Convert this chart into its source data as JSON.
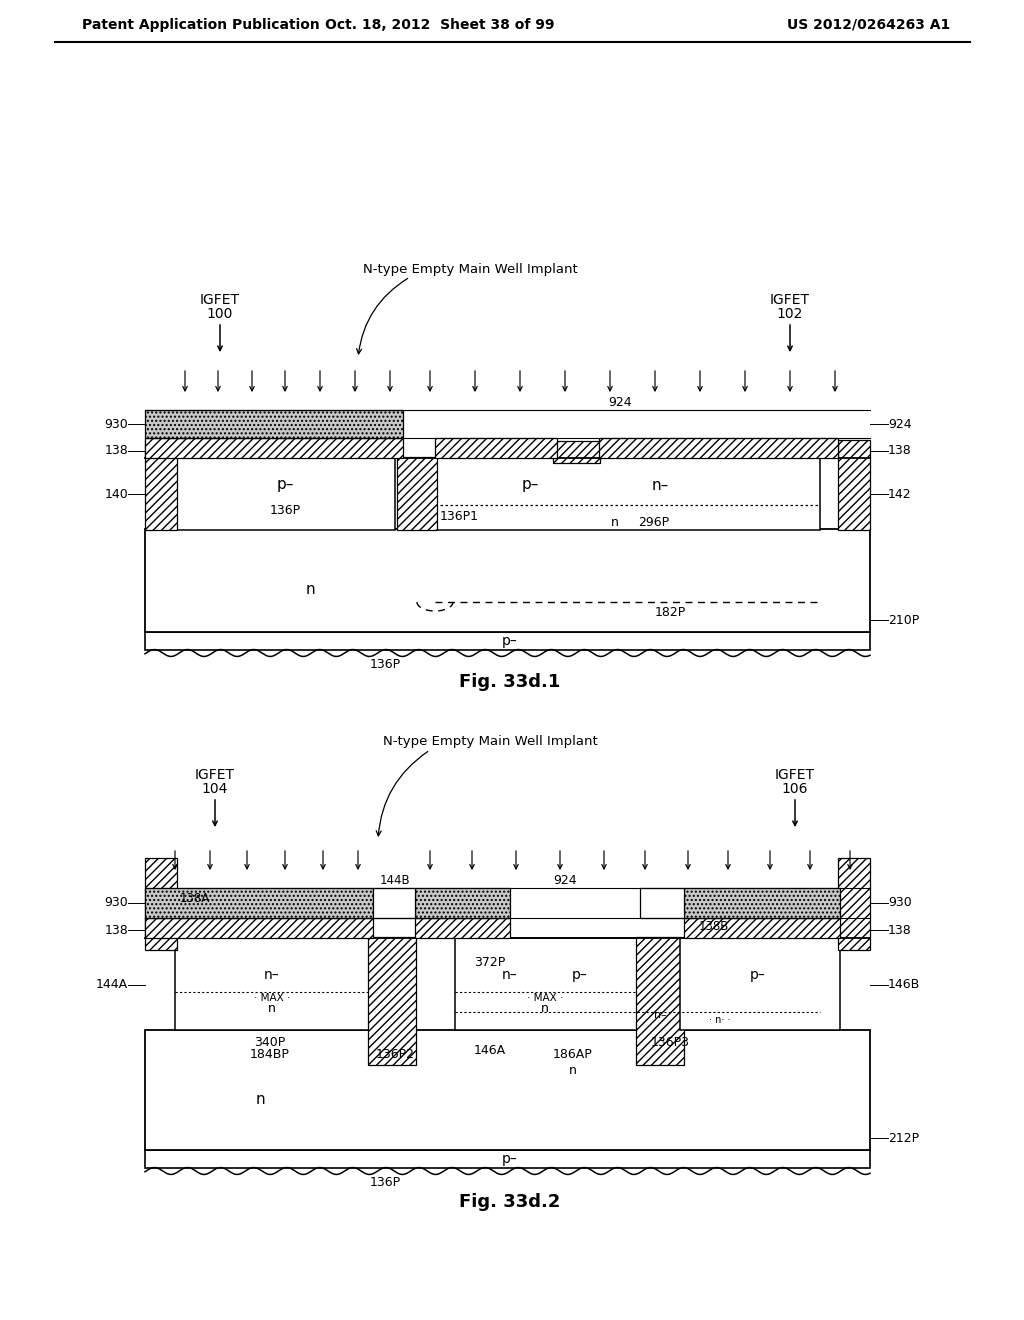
{
  "header_left": "Patent Application Publication",
  "header_mid": "Oct. 18, 2012  Sheet 38 of 99",
  "header_right": "US 2012/0264263 A1",
  "fig1_label": "Fig. 33d.1",
  "fig2_label": "Fig. 33d.2",
  "bg_color": "#ffffff"
}
